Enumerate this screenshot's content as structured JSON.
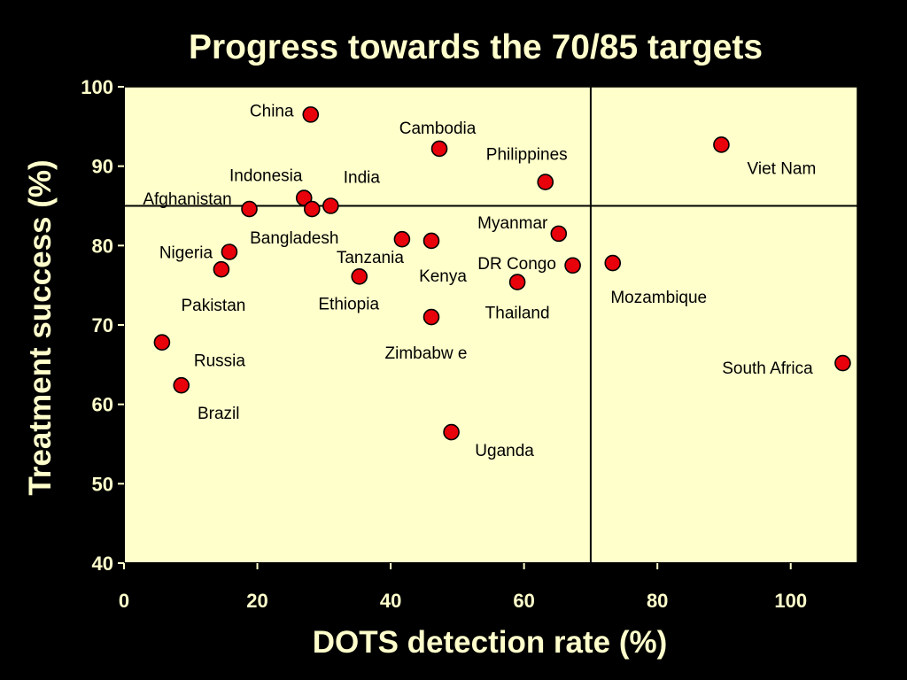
{
  "chart_data": {
    "type": "scatter",
    "title": "Progress towards the 70/85 targets",
    "xlabel": "DOTS detection rate (%)",
    "ylabel": "Treatment success (%)",
    "xlim": [
      0,
      110
    ],
    "ylim": [
      40,
      100
    ],
    "xticks": [
      0,
      20,
      40,
      60,
      80,
      100
    ],
    "yticks": [
      40,
      50,
      60,
      70,
      80,
      90,
      100
    ],
    "xtick_labels": [
      "0",
      "20",
      "40",
      "60",
      "80",
      "100"
    ],
    "ytick_labels": [
      "40",
      "50",
      "60",
      "70",
      "80",
      "90",
      "100"
    ],
    "reference_lines": {
      "x": 70,
      "y": 85
    },
    "grid": false,
    "points": [
      {
        "label": "China",
        "x": 28,
        "y": 96.5
      },
      {
        "label": "Cambodia",
        "x": 47.3,
        "y": 92.2
      },
      {
        "label": "Philippines",
        "x": 63.2,
        "y": 88
      },
      {
        "label": "Viet Nam",
        "x": 89.6,
        "y": 92.7
      },
      {
        "label": "Indonesia",
        "x": 27,
        "y": 86
      },
      {
        "label": "India",
        "x": 31,
        "y": 85
      },
      {
        "label": "Afghanistan",
        "x": 18.8,
        "y": 84.6
      },
      {
        "label": "Bangladesh",
        "x": 28.2,
        "y": 84.6
      },
      {
        "label": "Myanmar",
        "x": 65.2,
        "y": 81.5
      },
      {
        "label": "Nigeria",
        "x": 15.8,
        "y": 79.2
      },
      {
        "label": "Tanzania",
        "x": 41.7,
        "y": 80.8
      },
      {
        "label": "Kenya",
        "x": 46.1,
        "y": 80.6
      },
      {
        "label": "DR Congo",
        "x": 67.3,
        "y": 77.5
      },
      {
        "label": "Mozambique",
        "x": 73.3,
        "y": 77.8
      },
      {
        "label": "Pakistan",
        "x": 14.6,
        "y": 77
      },
      {
        "label": "Ethiopia",
        "x": 35.3,
        "y": 76.1
      },
      {
        "label": "Thailand",
        "x": 59,
        "y": 75.4
      },
      {
        "label": "Zimbabw e",
        "x": 46.1,
        "y": 71
      },
      {
        "label": "Russia",
        "x": 5.7,
        "y": 67.8
      },
      {
        "label": "South Africa",
        "x": 107.8,
        "y": 65.2
      },
      {
        "label": "Brazil",
        "x": 8.6,
        "y": 62.4
      },
      {
        "label": "Uganda",
        "x": 49.1,
        "y": 56.5
      }
    ]
  },
  "colors": {
    "background": "#000000",
    "plot_area": "#FFFFCC",
    "text": "#FFFFCC",
    "marker_fill": "#E8000B",
    "marker_stroke": "#000000",
    "axis": "#000000"
  }
}
